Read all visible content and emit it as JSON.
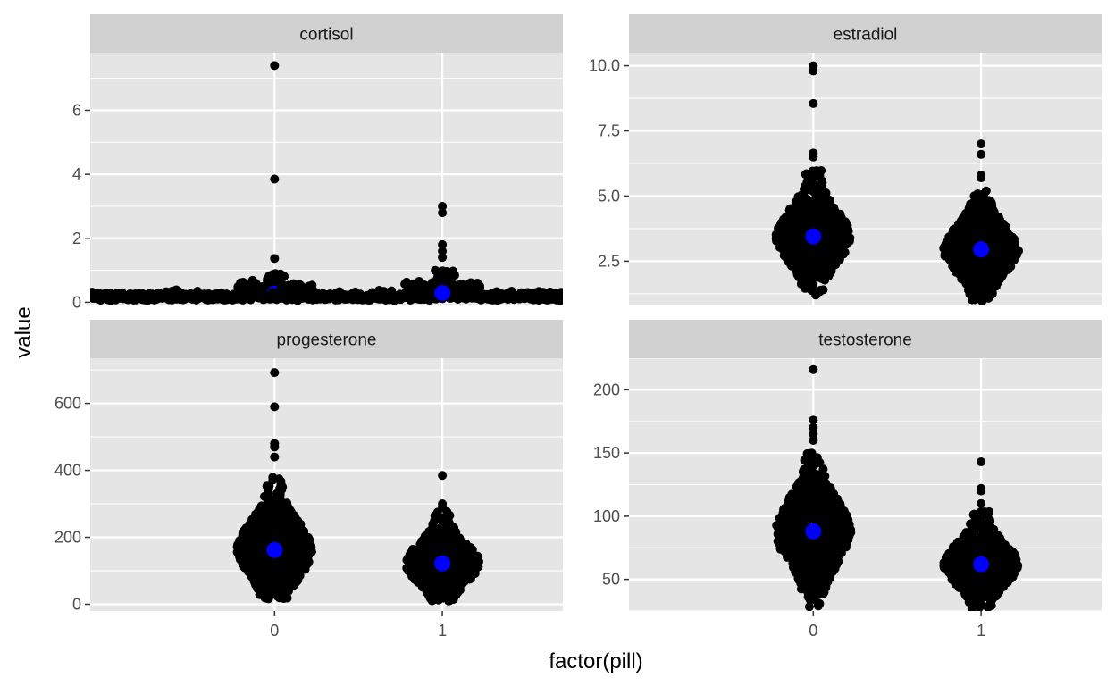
{
  "chart_data": {
    "type": "scatter",
    "subtype": "beeswarm-facet",
    "xlabel": "factor(pill)",
    "ylabel": "value",
    "x_categories": [
      "0",
      "1"
    ],
    "colors": {
      "panel_bg": "#e5e5e5",
      "strip_bg": "#d1d1d1",
      "grid": "#ffffff",
      "points": "#000000",
      "mean_points": "#0000ff"
    },
    "facets": [
      {
        "title": "cortisol",
        "ylim": [
          -0.1,
          7.8
        ],
        "yticks": [
          0,
          2,
          4,
          6
        ],
        "groups": [
          {
            "x": "0",
            "mean": 0.27,
            "max_outliers": [
              7.4,
              3.85,
              1.37
            ],
            "core_max": 0.9
          },
          {
            "x": "1",
            "mean": 0.29,
            "max_outliers": [
              3.0,
              2.8,
              1.8,
              1.6,
              1.4
            ],
            "core_max": 1.0
          }
        ]
      },
      {
        "title": "estradiol",
        "ylim": [
          0.8,
          10.5
        ],
        "yticks": [
          2.5,
          5.0,
          7.5,
          10.0
        ],
        "ytick_labels": [
          "2.5",
          "5.0",
          "7.5",
          "10.0"
        ],
        "groups": [
          {
            "x": "0",
            "mean": 3.45,
            "max_outliers": [
              10.0,
              9.8,
              8.55,
              6.65,
              6.5
            ],
            "core_min": 1.2,
            "core_max": 6.0
          },
          {
            "x": "1",
            "mean": 2.95,
            "max_outliers": [
              7.0,
              6.6,
              5.8,
              5.7
            ],
            "core_min": 0.9,
            "core_max": 5.2
          }
        ]
      },
      {
        "title": "progesterone",
        "ylim": [
          -20,
          735
        ],
        "yticks": [
          0,
          200,
          400,
          600
        ],
        "groups": [
          {
            "x": "0",
            "mean": 162,
            "max_outliers": [
              692,
              590,
              480,
              470,
              440
            ],
            "core_min": 15,
            "core_max": 420
          },
          {
            "x": "1",
            "mean": 122,
            "max_outliers": [
              385,
              300,
              290
            ],
            "core_min": 10,
            "core_max": 285
          }
        ]
      },
      {
        "title": "testosterone",
        "ylim": [
          25,
          225
        ],
        "yticks": [
          50,
          100,
          150,
          200
        ],
        "groups": [
          {
            "x": "0",
            "mean": 88,
            "max_outliers": [
              216,
              176,
              170,
              165,
              160
            ],
            "core_min": 28,
            "core_max": 150
          },
          {
            "x": "1",
            "mean": 62,
            "max_outliers": [
              143,
              122,
              120,
              110
            ],
            "core_min": 26,
            "core_max": 105
          }
        ]
      }
    ]
  }
}
